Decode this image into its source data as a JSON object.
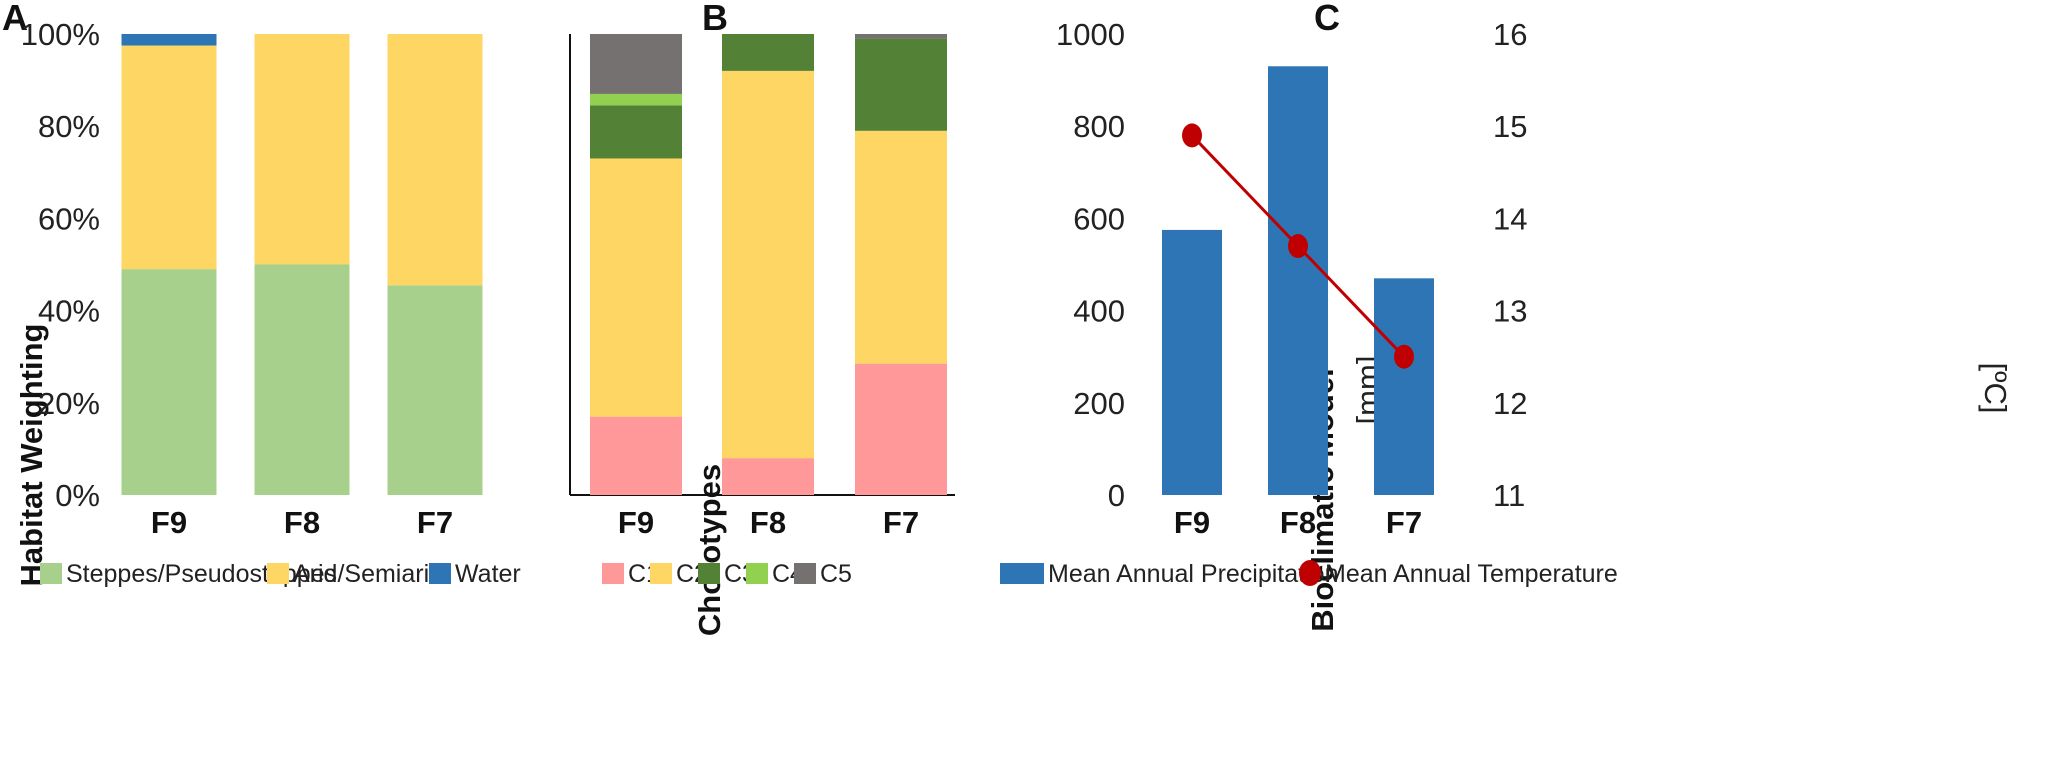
{
  "chart_data": [
    {
      "panel": "A",
      "type": "bar",
      "stacked": true,
      "ylabel": "Habitat Weighting",
      "yticks": [
        "0%",
        "20%",
        "40%",
        "60%",
        "80%",
        "100%"
      ],
      "ylim": [
        0,
        100
      ],
      "categories": [
        "F9",
        "F8",
        "F7"
      ],
      "series": [
        {
          "name": "Steppes/Pseudosteppes",
          "color": "#a8d08d",
          "values": [
            49,
            50,
            45.5
          ]
        },
        {
          "name": "Arid/Semiarid",
          "color": "#fdd663",
          "values": [
            48.5,
            50,
            54.5
          ]
        },
        {
          "name": "Water",
          "color": "#2e75b6",
          "values": [
            2.5,
            0,
            0
          ]
        }
      ],
      "legend_position": "bottom"
    },
    {
      "panel": "B",
      "type": "bar",
      "stacked": true,
      "ylabel": "Chorotypes",
      "ylim": [
        0,
        100
      ],
      "categories": [
        "F9",
        "F8",
        "F7"
      ],
      "series": [
        {
          "name": "C1",
          "color": "#ff9999",
          "values": [
            17,
            8,
            28.5
          ]
        },
        {
          "name": "C2",
          "color": "#fdd663",
          "values": [
            56,
            84,
            50.5
          ]
        },
        {
          "name": "C3",
          "color": "#538135",
          "values": [
            11.5,
            8,
            20
          ]
        },
        {
          "name": "C4",
          "color": "#92d050",
          "values": [
            2.5,
            0,
            0
          ]
        },
        {
          "name": "C5",
          "color": "#767171",
          "values": [
            13,
            0,
            1
          ]
        }
      ],
      "legend_position": "bottom"
    },
    {
      "panel": "C",
      "type": "bar+line",
      "ylabel": "Bioclimatic Model",
      "y1label": "[mm]",
      "y2label": "[ºC]",
      "y1ticks": [
        "0",
        "200",
        "400",
        "600",
        "800",
        "1000"
      ],
      "y2ticks": [
        "11",
        "12",
        "13",
        "14",
        "15",
        "16"
      ],
      "ylim": [
        0,
        1000
      ],
      "y2lim": [
        11,
        16
      ],
      "categories": [
        "F9",
        "F8",
        "F7"
      ],
      "series": [
        {
          "name": "Mean Annual Precipitation",
          "type": "bar",
          "axis": "left",
          "color": "#2e75b6",
          "values": [
            575,
            930,
            470
          ]
        },
        {
          "name": "Mean Annual Temperature",
          "type": "line",
          "axis": "right",
          "color": "#c00000",
          "values": [
            14.9,
            13.7,
            12.5
          ]
        }
      ],
      "legend_position": "bottom"
    }
  ]
}
